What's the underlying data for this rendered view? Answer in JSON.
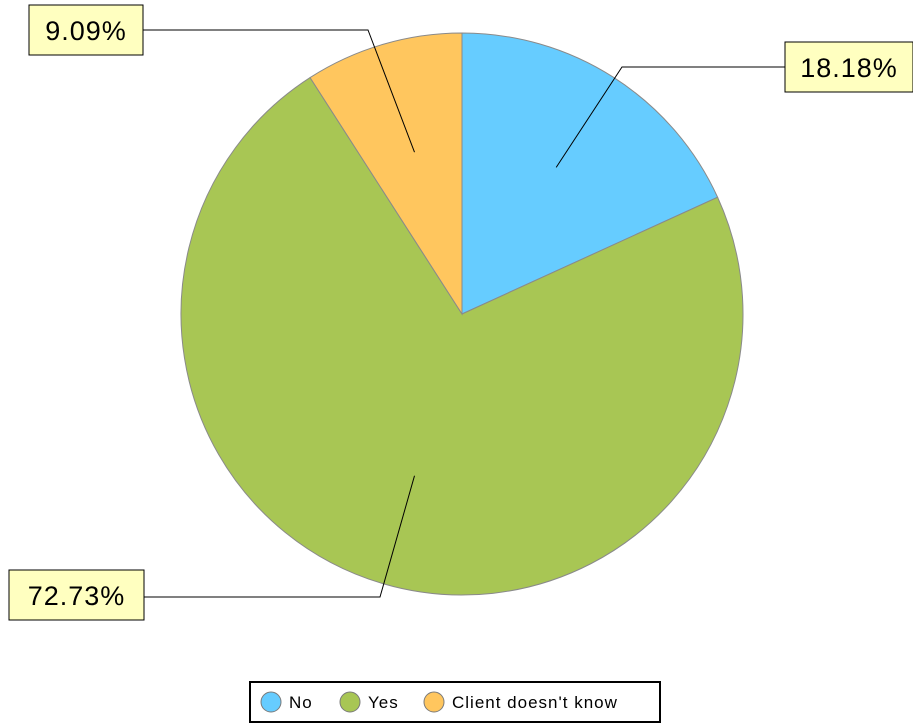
{
  "chart_data": {
    "type": "pie",
    "categories": [
      "No",
      "Yes",
      "Client doesn't know"
    ],
    "values": [
      18.18,
      72.73,
      9.09
    ],
    "data_labels": [
      "18.18%",
      "72.73%",
      "9.09%"
    ],
    "colors": [
      "#66ccff",
      "#a8c654",
      "#ffc65e"
    ],
    "legend": {
      "placement": "bottom-center",
      "entries": [
        "No",
        "Yes",
        "Client doesn't know"
      ]
    },
    "start_angle_deg": 0,
    "direction": "clockwise"
  }
}
